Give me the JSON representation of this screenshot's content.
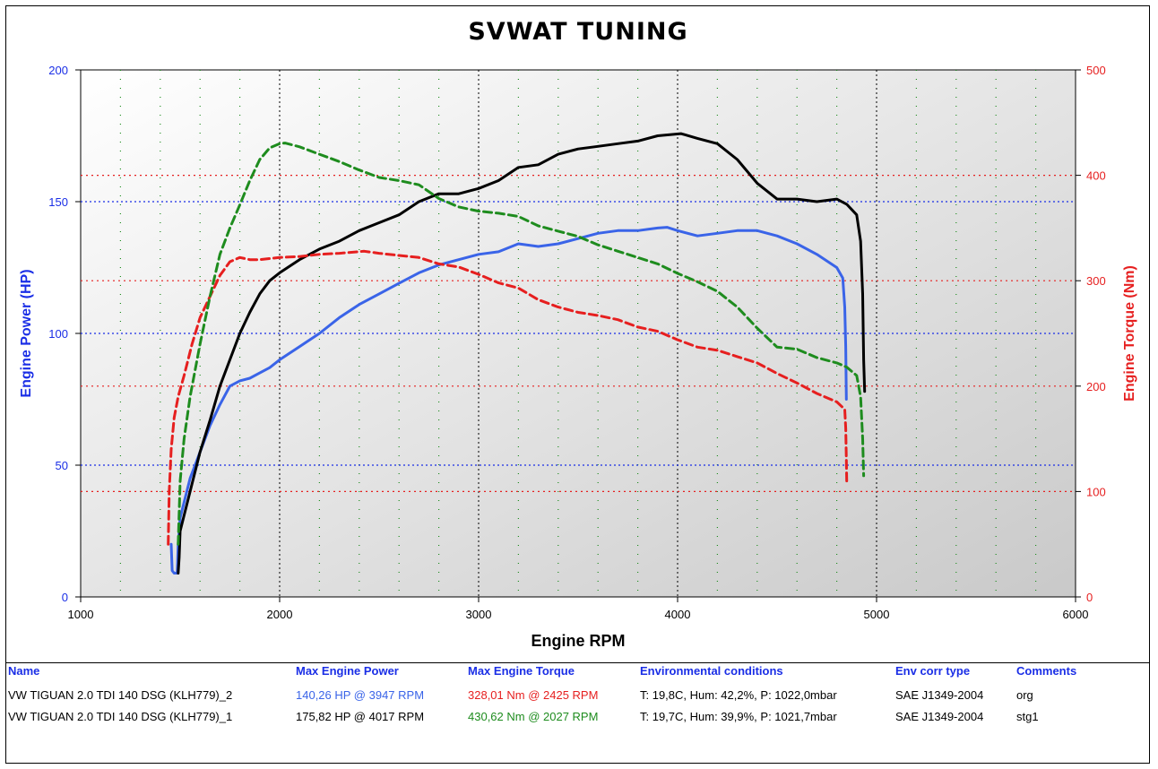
{
  "title": "SVWAT TUNING",
  "chart_data": {
    "type": "line",
    "title": "SVWAT TUNING",
    "xlabel": "Engine RPM",
    "ylabel_left": "Engine Power (HP)",
    "ylabel_right": "Engine Torque (Nm)",
    "xlim": [
      1000,
      6000
    ],
    "ylim_left": [
      0,
      200
    ],
    "ylim_right": [
      0,
      500
    ],
    "x_ticks": [
      "1000",
      "2000",
      "3000",
      "4000",
      "5000",
      "6000"
    ],
    "y_left_ticks": [
      "0",
      "50",
      "100",
      "150",
      "200"
    ],
    "y_right_ticks": [
      "0",
      "100",
      "200",
      "300",
      "400",
      "500"
    ],
    "grid": true,
    "series": [
      {
        "axis": "left",
        "color": "#3a64e8",
        "style": "solid",
        "points": [
          [
            1455,
            20
          ],
          [
            1460,
            10
          ],
          [
            1470,
            9
          ],
          [
            1485,
            9
          ],
          [
            1490,
            20
          ],
          [
            1500,
            30
          ],
          [
            1550,
            45
          ],
          [
            1600,
            55
          ],
          [
            1650,
            65
          ],
          [
            1700,
            73
          ],
          [
            1750,
            80
          ],
          [
            1800,
            82
          ],
          [
            1850,
            83
          ],
          [
            1900,
            85
          ],
          [
            1950,
            87
          ],
          [
            2000,
            90
          ],
          [
            2100,
            95
          ],
          [
            2200,
            100
          ],
          [
            2300,
            106
          ],
          [
            2400,
            111
          ],
          [
            2500,
            115
          ],
          [
            2600,
            119
          ],
          [
            2700,
            123
          ],
          [
            2800,
            126
          ],
          [
            2900,
            128
          ],
          [
            3000,
            130
          ],
          [
            3100,
            131
          ],
          [
            3200,
            134
          ],
          [
            3300,
            133
          ],
          [
            3400,
            134
          ],
          [
            3500,
            136
          ],
          [
            3600,
            138
          ],
          [
            3700,
            139
          ],
          [
            3800,
            139
          ],
          [
            3900,
            140
          ],
          [
            3947,
            140.26
          ],
          [
            4000,
            139
          ],
          [
            4100,
            137
          ],
          [
            4200,
            138
          ],
          [
            4300,
            139
          ],
          [
            4400,
            139
          ],
          [
            4500,
            137
          ],
          [
            4600,
            134
          ],
          [
            4700,
            130
          ],
          [
            4800,
            125
          ],
          [
            4830,
            121
          ],
          [
            4840,
            110
          ],
          [
            4845,
            95
          ],
          [
            4848,
            75
          ]
        ]
      },
      {
        "axis": "left",
        "color": "#000000",
        "style": "solid",
        "points": [
          [
            1490,
            9
          ],
          [
            1495,
            15
          ],
          [
            1500,
            25
          ],
          [
            1550,
            40
          ],
          [
            1600,
            55
          ],
          [
            1650,
            67
          ],
          [
            1700,
            80
          ],
          [
            1750,
            90
          ],
          [
            1800,
            100
          ],
          [
            1850,
            108
          ],
          [
            1900,
            115
          ],
          [
            1950,
            120
          ],
          [
            2000,
            123
          ],
          [
            2100,
            128
          ],
          [
            2200,
            132
          ],
          [
            2300,
            135
          ],
          [
            2400,
            139
          ],
          [
            2500,
            142
          ],
          [
            2600,
            145
          ],
          [
            2700,
            150
          ],
          [
            2800,
            153
          ],
          [
            2900,
            153
          ],
          [
            3000,
            155
          ],
          [
            3100,
            158
          ],
          [
            3200,
            163
          ],
          [
            3300,
            164
          ],
          [
            3400,
            168
          ],
          [
            3500,
            170
          ],
          [
            3600,
            171
          ],
          [
            3700,
            172
          ],
          [
            3800,
            173
          ],
          [
            3900,
            175
          ],
          [
            4017,
            175.82
          ],
          [
            4100,
            174
          ],
          [
            4200,
            172
          ],
          [
            4300,
            166
          ],
          [
            4400,
            157
          ],
          [
            4500,
            151
          ],
          [
            4600,
            151
          ],
          [
            4700,
            150
          ],
          [
            4800,
            151
          ],
          [
            4850,
            149
          ],
          [
            4900,
            145
          ],
          [
            4920,
            135
          ],
          [
            4930,
            115
          ],
          [
            4935,
            90
          ],
          [
            4940,
            78
          ]
        ]
      },
      {
        "axis": "right",
        "color": "#e61f1f",
        "style": "dashed",
        "points": [
          [
            1440,
            50
          ],
          [
            1445,
            100
          ],
          [
            1455,
            140
          ],
          [
            1470,
            170
          ],
          [
            1490,
            190
          ],
          [
            1520,
            210
          ],
          [
            1560,
            240
          ],
          [
            1600,
            265
          ],
          [
            1650,
            285
          ],
          [
            1700,
            305
          ],
          [
            1750,
            318
          ],
          [
            1800,
            322
          ],
          [
            1850,
            320
          ],
          [
            1900,
            320
          ],
          [
            2000,
            322
          ],
          [
            2100,
            323
          ],
          [
            2200,
            325
          ],
          [
            2300,
            326
          ],
          [
            2425,
            328.01
          ],
          [
            2500,
            326
          ],
          [
            2600,
            324
          ],
          [
            2700,
            322
          ],
          [
            2800,
            316
          ],
          [
            2900,
            313
          ],
          [
            3000,
            306
          ],
          [
            3100,
            298
          ],
          [
            3200,
            293
          ],
          [
            3300,
            282
          ],
          [
            3400,
            275
          ],
          [
            3500,
            270
          ],
          [
            3600,
            267
          ],
          [
            3700,
            263
          ],
          [
            3800,
            256
          ],
          [
            3900,
            252
          ],
          [
            4000,
            244
          ],
          [
            4100,
            237
          ],
          [
            4200,
            234
          ],
          [
            4300,
            228
          ],
          [
            4400,
            222
          ],
          [
            4500,
            212
          ],
          [
            4600,
            203
          ],
          [
            4700,
            193
          ],
          [
            4800,
            185
          ],
          [
            4840,
            178
          ],
          [
            4845,
            160
          ],
          [
            4848,
            130
          ],
          [
            4850,
            110
          ]
        ]
      },
      {
        "axis": "right",
        "color": "#1e8c1e",
        "style": "dashed",
        "points": [
          [
            1490,
            50
          ],
          [
            1495,
            80
          ],
          [
            1500,
            110
          ],
          [
            1520,
            150
          ],
          [
            1550,
            190
          ],
          [
            1600,
            240
          ],
          [
            1650,
            285
          ],
          [
            1700,
            325
          ],
          [
            1750,
            350
          ],
          [
            1800,
            372
          ],
          [
            1850,
            395
          ],
          [
            1900,
            415
          ],
          [
            1950,
            426
          ],
          [
            2000,
            430
          ],
          [
            2027,
            430.62
          ],
          [
            2100,
            427
          ],
          [
            2200,
            420
          ],
          [
            2300,
            413
          ],
          [
            2400,
            405
          ],
          [
            2500,
            398
          ],
          [
            2600,
            395
          ],
          [
            2700,
            391
          ],
          [
            2800,
            378
          ],
          [
            2900,
            370
          ],
          [
            3000,
            366
          ],
          [
            3100,
            364
          ],
          [
            3200,
            361
          ],
          [
            3300,
            352
          ],
          [
            3400,
            347
          ],
          [
            3500,
            342
          ],
          [
            3600,
            334
          ],
          [
            3700,
            328
          ],
          [
            3800,
            322
          ],
          [
            3900,
            316
          ],
          [
            4000,
            307
          ],
          [
            4100,
            299
          ],
          [
            4200,
            290
          ],
          [
            4300,
            275
          ],
          [
            4400,
            255
          ],
          [
            4500,
            237
          ],
          [
            4600,
            235
          ],
          [
            4700,
            227
          ],
          [
            4800,
            222
          ],
          [
            4850,
            218
          ],
          [
            4900,
            210
          ],
          [
            4920,
            190
          ],
          [
            4930,
            150
          ],
          [
            4935,
            115
          ]
        ]
      }
    ]
  },
  "table": {
    "headers": [
      "Name",
      "Max Engine Power",
      "Max Engine Torque",
      "Environmental conditions",
      "Env corr type",
      "Comments"
    ],
    "rows": [
      {
        "name": "VW TIGUAN 2.0 TDI 140 DSG (KLH779)_2",
        "power": "140,26 HP @ 3947 RPM",
        "power_color": "#3a64e8",
        "torque": "328,01 Nm @ 2425 RPM",
        "torque_color": "#e61f1f",
        "env": "T: 19,8C, Hum: 42,2%, P: 1022,0mbar",
        "corr": "SAE J1349-2004",
        "comment": "org"
      },
      {
        "name": "VW TIGUAN 2.0 TDI 140 DSG (KLH779)_1",
        "power": "175,82 HP @ 4017 RPM",
        "power_color": "#000000",
        "torque": "430,62 Nm @ 2027 RPM",
        "torque_color": "#1e8c1e",
        "env": "T: 19,7C, Hum: 39,9%, P: 1021,7mbar",
        "corr": "SAE J1349-2004",
        "comment": "stg1"
      }
    ]
  }
}
